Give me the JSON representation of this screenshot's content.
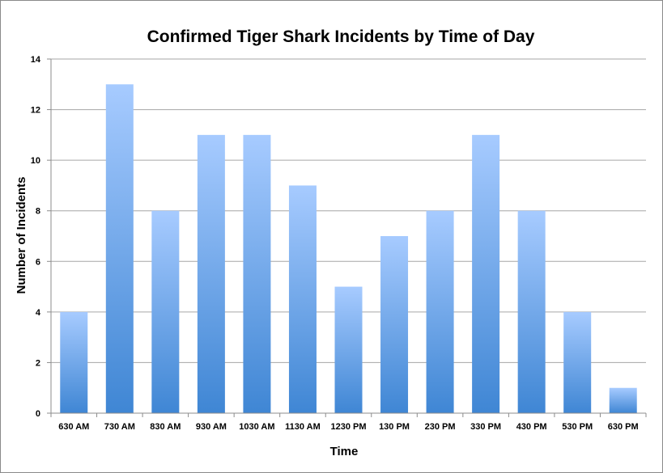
{
  "chart_data": {
    "type": "bar",
    "title": "Confirmed Tiger Shark Incidents by Time of Day",
    "xlabel": "Time",
    "ylabel": "Number of Incidents",
    "categories": [
      "630 AM",
      "730 AM",
      "830 AM",
      "930 AM",
      "1030 AM",
      "1130 AM",
      "1230 PM",
      "130 PM",
      "230 PM",
      "330 PM",
      "430 PM",
      "530 PM",
      "630 PM"
    ],
    "values": [
      4,
      13,
      8,
      11,
      11,
      9,
      5,
      7,
      8,
      11,
      8,
      4,
      1
    ],
    "ylim": [
      0,
      14
    ],
    "yticks": [
      "0",
      "2",
      "4",
      "6",
      "8",
      "10",
      "12",
      "14"
    ],
    "grid": true,
    "legend": "none",
    "colors": {
      "bar_top": "#a7cbff",
      "bar_bottom": "#3f86d4",
      "grid": "#a6a6a6",
      "axis": "#8c8c8c"
    }
  }
}
